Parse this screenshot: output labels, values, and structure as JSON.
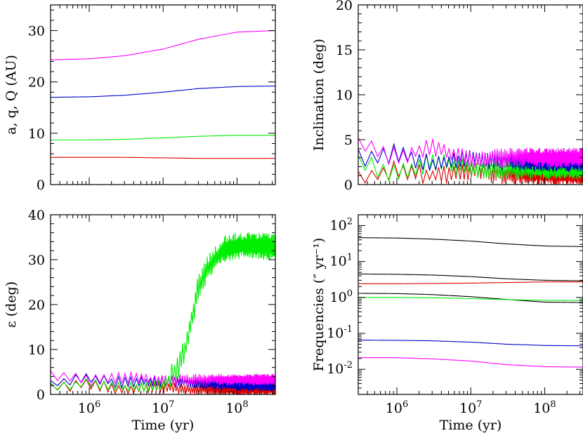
{
  "chart_data": [
    {
      "type": "line",
      "panel": "top-left",
      "xscale": "log",
      "xlim": [
        300000,
        330000000
      ],
      "ylim": [
        0,
        35
      ],
      "ylabel": "a, q, Q (AU)",
      "xlabel": "",
      "yticks": [
        "0",
        "10",
        "20",
        "30"
      ],
      "xticks": [],
      "series": [
        {
          "color": "#ff00ff",
          "x": [
            300000,
            1000000,
            3000000,
            10000000,
            30000000,
            100000000,
            330000000
          ],
          "y": [
            24.3,
            24.5,
            25.1,
            26.4,
            28.3,
            29.7,
            30.0
          ]
        },
        {
          "color": "#0000cc",
          "x": [
            300000,
            1000000,
            3000000,
            10000000,
            30000000,
            100000000,
            330000000
          ],
          "y": [
            17.0,
            17.1,
            17.4,
            18.0,
            18.7,
            19.1,
            19.2
          ]
        },
        {
          "color": "#00ee00",
          "x": [
            300000,
            1000000,
            3000000,
            10000000,
            30000000,
            100000000,
            330000000
          ],
          "y": [
            8.7,
            8.7,
            8.8,
            9.1,
            9.4,
            9.6,
            9.6
          ]
        },
        {
          "color": "#dd0000",
          "x": [
            300000,
            1000000,
            3000000,
            10000000,
            30000000,
            100000000,
            330000000
          ],
          "y": [
            5.3,
            5.3,
            5.3,
            5.2,
            5.1,
            5.1,
            5.1
          ]
        }
      ]
    },
    {
      "type": "line",
      "panel": "top-right",
      "xscale": "log",
      "xlim": [
        300000,
        330000000
      ],
      "ylim": [
        0,
        20
      ],
      "ylabel": "Inclination (deg)",
      "xlabel": "",
      "yticks": [
        "0",
        "5",
        "10",
        "15",
        "20"
      ],
      "xticks": [],
      "series": [
        {
          "color": "#dd0000",
          "base": 1.3,
          "amp": 0.9,
          "x": [
            300000,
            1000000,
            3000000,
            10000000,
            30000000,
            100000000,
            330000000
          ],
          "y": [
            0.8,
            1.6,
            1.0,
            1.5,
            1.1,
            1.0,
            1.0
          ]
        },
        {
          "color": "#00ee00",
          "base": 2.0,
          "amp": 1.2,
          "x": [
            300000,
            1000000,
            3000000,
            10000000,
            30000000,
            100000000,
            330000000
          ],
          "y": [
            2.8,
            1.0,
            2.5,
            1.8,
            1.6,
            1.7,
            1.7
          ]
        },
        {
          "color": "#0000cc",
          "base": 2.6,
          "amp": 1.4,
          "x": [
            300000,
            1000000,
            3000000,
            10000000,
            30000000,
            100000000,
            330000000
          ],
          "y": [
            3.0,
            3.5,
            2.2,
            3.0,
            2.6,
            2.5,
            2.5
          ]
        },
        {
          "color": "#ff00ff",
          "base": 3.0,
          "amp": 1.8,
          "x": [
            300000,
            1000000,
            3000000,
            10000000,
            30000000,
            100000000,
            330000000
          ],
          "y": [
            4.5,
            3.0,
            4.2,
            2.6,
            3.0,
            3.0,
            3.0
          ]
        }
      ]
    },
    {
      "type": "line",
      "panel": "bottom-left",
      "xscale": "log",
      "xlim": [
        300000,
        330000000
      ],
      "ylim": [
        0,
        40
      ],
      "ylabel": "ε (deg)",
      "xlabel": "Time (yr)",
      "yticks": [
        "0",
        "10",
        "20",
        "30",
        "40"
      ],
      "xticks": [
        "10^6",
        "10^7",
        "10^8"
      ],
      "series": [
        {
          "color": "#dd0000",
          "x": [
            300000,
            1000000,
            3000000,
            10000000,
            30000000,
            100000000,
            330000000
          ],
          "y": [
            1.5,
            2.2,
            1.2,
            1.5,
            1.0,
            1.0,
            1.0
          ]
        },
        {
          "color": "#0000cc",
          "x": [
            300000,
            1000000,
            3000000,
            10000000,
            30000000,
            100000000,
            330000000
          ],
          "y": [
            2.5,
            3.5,
            2.5,
            3.0,
            2.5,
            2.0,
            2.0
          ]
        },
        {
          "color": "#ff00ff",
          "x": [
            300000,
            1000000,
            3000000,
            10000000,
            30000000,
            100000000,
            330000000
          ],
          "y": [
            4.2,
            3.0,
            3.8,
            3.0,
            3.3,
            3.3,
            3.3
          ]
        },
        {
          "color": "#00ee00",
          "x": [
            300000,
            1000000,
            3000000,
            10000000,
            12000000,
            16000000,
            20000000,
            25000000,
            30000000,
            40000000,
            55000000,
            70000000,
            100000000,
            150000000,
            200000000,
            330000000
          ],
          "y": [
            1.8,
            2.5,
            1.5,
            2.0,
            3.5,
            6.0,
            10.0,
            17.0,
            24.0,
            28.0,
            31.0,
            32.5,
            33.0,
            33.2,
            33.0,
            32.8
          ]
        }
      ]
    },
    {
      "type": "line",
      "panel": "bottom-right",
      "xscale": "log",
      "yscale": "log",
      "xlim": [
        300000,
        330000000
      ],
      "ylim": [
        0.002,
        200
      ],
      "ylabel": "Frequencies (″ yr⁻¹)",
      "xlabel": "Time (yr)",
      "yticks": [
        "10^-2",
        "10^-1",
        "10^0",
        "10^1",
        "10^2"
      ],
      "xticks": [
        "10^6",
        "10^7",
        "10^8"
      ],
      "series": [
        {
          "color": "#000000",
          "x": [
            300000,
            1000000,
            3000000,
            10000000,
            30000000,
            100000000,
            330000000
          ],
          "y": [
            46,
            45,
            42,
            37,
            31,
            27,
            26
          ]
        },
        {
          "color": "#000000",
          "x": [
            300000,
            1000000,
            3000000,
            10000000,
            30000000,
            100000000,
            330000000
          ],
          "y": [
            4.5,
            4.4,
            4.2,
            3.8,
            3.3,
            3.0,
            2.9
          ]
        },
        {
          "color": "#dd0000",
          "x": [
            300000,
            1000000,
            3000000,
            10000000,
            30000000,
            100000000,
            330000000
          ],
          "y": [
            2.4,
            2.4,
            2.45,
            2.5,
            2.6,
            2.7,
            2.7
          ]
        },
        {
          "color": "#000000",
          "x": [
            300000,
            1000000,
            3000000,
            10000000,
            30000000,
            100000000,
            330000000
          ],
          "y": [
            1.3,
            1.28,
            1.2,
            1.05,
            0.88,
            0.74,
            0.72
          ]
        },
        {
          "color": "#00ee00",
          "x": [
            300000,
            1000000,
            3000000,
            10000000,
            30000000,
            100000000,
            330000000
          ],
          "y": [
            1.0,
            1.0,
            0.98,
            0.93,
            0.87,
            0.83,
            0.82
          ]
        },
        {
          "color": "#0000cc",
          "x": [
            300000,
            1000000,
            3000000,
            10000000,
            30000000,
            100000000,
            330000000
          ],
          "y": [
            0.065,
            0.064,
            0.062,
            0.057,
            0.05,
            0.046,
            0.045
          ]
        },
        {
          "color": "#ff00ff",
          "x": [
            300000,
            1000000,
            3000000,
            10000000,
            30000000,
            100000000,
            330000000
          ],
          "y": [
            0.021,
            0.021,
            0.0195,
            0.017,
            0.0135,
            0.0118,
            0.0115
          ]
        }
      ]
    }
  ]
}
